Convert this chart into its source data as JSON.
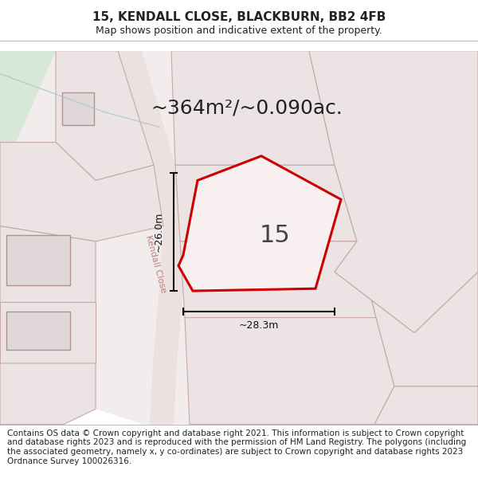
{
  "title_line1": "15, KENDALL CLOSE, BLACKBURN, BB2 4FB",
  "title_line2": "Map shows position and indicative extent of the property.",
  "area_text": "~364m²/~0.090ac.",
  "number_label": "15",
  "dim_vertical": "~26.0m",
  "dim_horizontal": "~28.3m",
  "street_label": "Kendall Close",
  "footer_text": "Contains OS data © Crown copyright and database right 2021. This information is subject to Crown copyright and database rights 2023 and is reproduced with the permission of HM Land Registry. The polygons (including the associated geometry, namely x, y co-ordinates) are subject to Crown copyright and database rights 2023 Ordnance Survey 100026316.",
  "green_bg": "#d8e8d8",
  "plot_fill": "#ece4e4",
  "plot_edge": "#c8a8a8",
  "road_fill": "#ede0e0",
  "highlight_outline": "#cc0000",
  "highlight_fill": "#f8f0f0",
  "dim_line_color": "#111111",
  "title_fontsize": 11,
  "subtitle_fontsize": 9,
  "area_fontsize": 18,
  "number_fontsize": 22,
  "dim_fontsize": 9,
  "street_fontsize": 8,
  "footer_fontsize": 7.5
}
